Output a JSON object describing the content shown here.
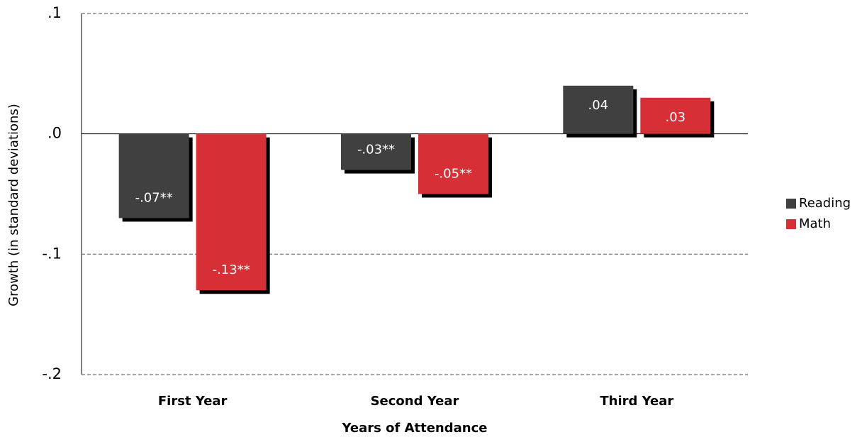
{
  "chart_data": {
    "type": "bar",
    "x_label": "Years of Attendance",
    "y_label": "Growth (in standard deviations)",
    "categories": [
      "First Year",
      "Second Year",
      "Third Year"
    ],
    "series": [
      {
        "name": "Reading",
        "color": "#404040",
        "values": [
          -0.07,
          -0.03,
          0.04
        ],
        "value_labels": [
          "-.07**",
          "-.03**",
          ".04"
        ]
      },
      {
        "name": "Math",
        "color": "#d62f36",
        "values": [
          -0.13,
          -0.05,
          0.03
        ],
        "value_labels": [
          "-.13**",
          "-.05**",
          ".03"
        ]
      }
    ],
    "ylim": [
      -0.2,
      0.1
    ],
    "yticks": [
      {
        "value": 0.1,
        "label": ".1"
      },
      {
        "value": 0,
        "label": ".0"
      },
      {
        "value": -0.1,
        "label": "-.1"
      },
      {
        "value": -0.2,
        "label": "-.2"
      }
    ],
    "grid": true,
    "legend": "right"
  }
}
